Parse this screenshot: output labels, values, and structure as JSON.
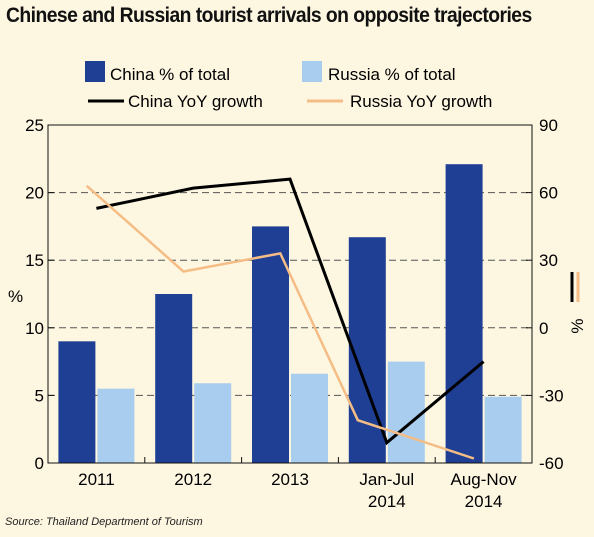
{
  "chart_data": {
    "type": "bar-line-combo",
    "title": "Chinese and Russian tourist arrivals on opposite trajectories",
    "source": "Source: Thailand Department of Tourism",
    "categories": [
      [
        "2011"
      ],
      [
        "2012"
      ],
      [
        "2013"
      ],
      [
        "Jan-Jul",
        "2014"
      ],
      [
        "Aug-Nov",
        "2014"
      ]
    ],
    "left_axis": {
      "label": "%",
      "ylim": [
        0,
        25
      ],
      "ticks": [
        "0",
        "5",
        "10",
        "15",
        "20",
        "25"
      ]
    },
    "right_axis": {
      "label": "%",
      "ylim": [
        -60,
        90
      ],
      "ticks": [
        "-60",
        "-30",
        "0",
        "30",
        "60",
        "90"
      ]
    },
    "bars": [
      {
        "name": "China % of total",
        "color": "#1f3f94",
        "values": [
          9.0,
          12.5,
          17.5,
          16.7,
          22.1
        ]
      },
      {
        "name": "Russia % of total",
        "color": "#a9cdee",
        "values": [
          5.5,
          5.9,
          6.6,
          7.5,
          4.9
        ]
      }
    ],
    "lines": [
      {
        "name": "China YoY growth",
        "color": "#000000",
        "axis": "right",
        "x": [
          0,
          1,
          2,
          3,
          4
        ],
        "values": [
          53,
          62,
          66,
          -51,
          -15
        ]
      },
      {
        "name": "Russia YoY growth",
        "color": "#f5bd86",
        "axis": "right",
        "x": [
          -0.1,
          0.9,
          1.9,
          2.7,
          3.9
        ],
        "values": [
          63,
          25,
          33,
          -41,
          -58
        ]
      }
    ],
    "grid": "dashed horizontal",
    "legend_placement": "top"
  }
}
